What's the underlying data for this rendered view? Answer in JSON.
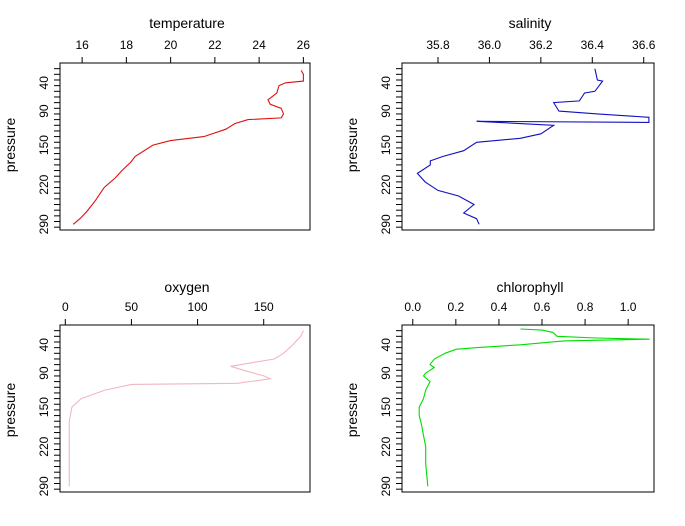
{
  "chart_data": [
    {
      "type": "line",
      "title": "temperature",
      "ylabel": "pressure",
      "color": "#e01010",
      "xlim": [
        15,
        26.3
      ],
      "xticks": [
        16,
        18,
        20,
        22,
        24,
        26
      ],
      "ylim": [
        300,
        5
      ],
      "yticks": [
        40,
        90,
        150,
        220,
        290
      ],
      "series": [
        {
          "points": [
            [
              25.9,
              18
            ],
            [
              26.0,
              25
            ],
            [
              26.0,
              37
            ],
            [
              25.2,
              40
            ],
            [
              24.9,
              45
            ],
            [
              24.8,
              58
            ],
            [
              24.4,
              70
            ],
            [
              24.5,
              78
            ],
            [
              25.0,
              85
            ],
            [
              25.1,
              95
            ],
            [
              25.0,
              102
            ],
            [
              23.5,
              105
            ],
            [
              22.9,
              112
            ],
            [
              22.5,
              122
            ],
            [
              21.5,
              135
            ],
            [
              20.0,
              142
            ],
            [
              19.2,
              150
            ],
            [
              18.4,
              170
            ],
            [
              18.2,
              180
            ],
            [
              17.8,
              195
            ],
            [
              17.5,
              208
            ],
            [
              17.0,
              225
            ],
            [
              16.6,
              248
            ],
            [
              16.2,
              268
            ],
            [
              15.9,
              280
            ],
            [
              15.6,
              290
            ]
          ]
        }
      ]
    },
    {
      "type": "line",
      "title": "salinity",
      "ylabel": "pressure",
      "color": "#1010c0",
      "xlim": [
        35.66,
        36.64
      ],
      "xticks": [
        35.8,
        36.0,
        36.2,
        36.4,
        36.6
      ],
      "ylim": [
        300,
        5
      ],
      "yticks": [
        40,
        90,
        150,
        220,
        290
      ],
      "series": [
        {
          "points": [
            [
              36.41,
              15
            ],
            [
              36.42,
              35
            ],
            [
              36.44,
              37
            ],
            [
              36.41,
              55
            ],
            [
              36.37,
              58
            ],
            [
              36.35,
              72
            ],
            [
              36.25,
              75
            ],
            [
              36.27,
              90
            ],
            [
              36.42,
              95
            ],
            [
              36.62,
              101
            ],
            [
              36.62,
              110
            ],
            [
              35.95,
              108
            ],
            [
              36.25,
              115
            ],
            [
              36.2,
              130
            ],
            [
              36.12,
              138
            ],
            [
              35.95,
              145
            ],
            [
              35.9,
              160
            ],
            [
              35.82,
              170
            ],
            [
              35.77,
              178
            ],
            [
              35.77,
              185
            ],
            [
              35.72,
              200
            ],
            [
              35.75,
              215
            ],
            [
              35.8,
              230
            ],
            [
              35.88,
              240
            ],
            [
              35.94,
              255
            ],
            [
              35.9,
              270
            ],
            [
              35.95,
              280
            ],
            [
              35.96,
              290
            ]
          ]
        }
      ]
    },
    {
      "type": "line",
      "title": "oxygen",
      "ylabel": "pressure",
      "color": "#f2b6c1",
      "xlim": [
        -4,
        185
      ],
      "xticks": [
        0,
        50,
        100,
        150
      ],
      "ylim": [
        300,
        5
      ],
      "yticks": [
        40,
        90,
        150,
        220,
        290
      ],
      "series": [
        {
          "points": [
            [
              180,
              15
            ],
            [
              178,
              25
            ],
            [
              172,
              40
            ],
            [
              165,
              55
            ],
            [
              158,
              65
            ],
            [
              140,
              72
            ],
            [
              125,
              78
            ],
            [
              135,
              85
            ],
            [
              150,
              95
            ],
            [
              155,
              100
            ],
            [
              130,
              108
            ],
            [
              50,
              110
            ],
            [
              30,
              120
            ],
            [
              12,
              135
            ],
            [
              5,
              150
            ],
            [
              3,
              175
            ],
            [
              3,
              220
            ],
            [
              3,
              290
            ]
          ]
        }
      ]
    },
    {
      "type": "line",
      "title": "chlorophyll",
      "ylabel": "pressure",
      "color": "#00dd00",
      "xlim": [
        -0.05,
        1.12
      ],
      "xticks": [
        0.0,
        0.2,
        0.4,
        0.6,
        0.8,
        1.0
      ],
      "ylim": [
        300,
        5
      ],
      "yticks": [
        40,
        90,
        150,
        220,
        290
      ],
      "series": [
        {
          "points": [
            [
              0.5,
              12
            ],
            [
              0.6,
              14
            ],
            [
              0.65,
              18
            ],
            [
              0.67,
              25
            ],
            [
              0.85,
              28
            ],
            [
              1.1,
              30
            ],
            [
              0.7,
              33
            ],
            [
              0.5,
              40
            ],
            [
              0.3,
              45
            ],
            [
              0.2,
              48
            ],
            [
              0.15,
              55
            ],
            [
              0.1,
              65
            ],
            [
              0.08,
              75
            ],
            [
              0.1,
              80
            ],
            [
              0.06,
              90
            ],
            [
              0.05,
              95
            ],
            [
              0.08,
              105
            ],
            [
              0.06,
              120
            ],
            [
              0.05,
              135
            ],
            [
              0.03,
              150
            ],
            [
              0.03,
              165
            ],
            [
              0.04,
              180
            ],
            [
              0.05,
              200
            ],
            [
              0.06,
              220
            ],
            [
              0.06,
              250
            ],
            [
              0.07,
              290
            ]
          ]
        }
      ]
    }
  ]
}
